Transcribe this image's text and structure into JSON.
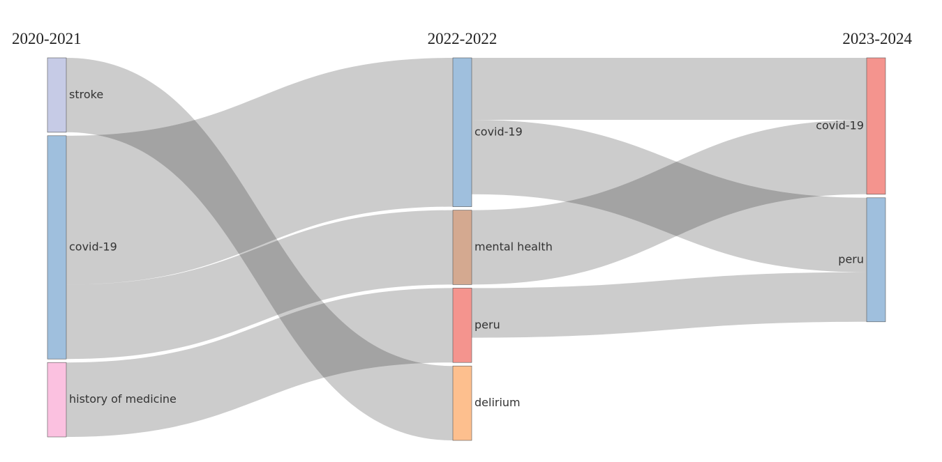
{
  "chart_data": {
    "type": "sankey",
    "columns": [
      "2020-2021",
      "2022-2022",
      "2023-2024"
    ],
    "nodes": [
      {
        "label": "stroke",
        "column": 0,
        "color": "#c6cbe6"
      },
      {
        "label": "covid-19",
        "column": 0,
        "color": "#9fbfdd"
      },
      {
        "label": "history of medicine",
        "column": 0,
        "color": "#fbc1e0"
      },
      {
        "label": "covid-19",
        "column": 1,
        "color": "#9fbfdd"
      },
      {
        "label": "mental health",
        "column": 1,
        "color": "#d4a990"
      },
      {
        "label": "peru",
        "column": 1,
        "color": "#f4948e"
      },
      {
        "label": "delirium",
        "column": 1,
        "color": "#fdbf8e"
      },
      {
        "label": "covid-19",
        "column": 2,
        "color": "#f4948e"
      },
      {
        "label": "peru",
        "column": 2,
        "color": "#9fbfdd"
      }
    ],
    "links": [
      {
        "source": 0,
        "target": 6,
        "value": 6
      },
      {
        "source": 1,
        "target": 3,
        "value": 12
      },
      {
        "source": 1,
        "target": 4,
        "value": 6
      },
      {
        "source": 2,
        "target": 5,
        "value": 6
      },
      {
        "source": 3,
        "target": 7,
        "value": 5
      },
      {
        "source": 3,
        "target": 8,
        "value": 6
      },
      {
        "source": 4,
        "target": 7,
        "value": 6
      },
      {
        "source": 5,
        "target": 8,
        "value": 4
      }
    ],
    "link_color": "rgba(0,0,0,0.2)"
  }
}
